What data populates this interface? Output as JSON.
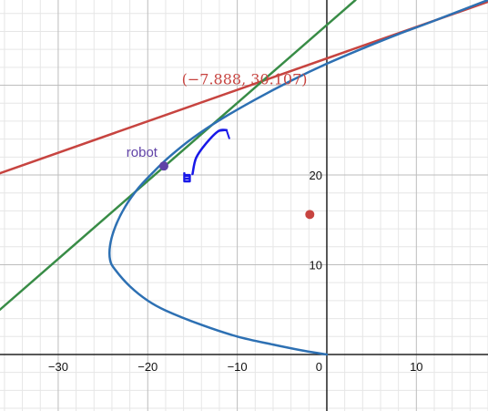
{
  "chart_data": {
    "type": "line",
    "xlim": [
      -36.5,
      18
    ],
    "ylim": [
      -6.3,
      39.5
    ],
    "grid": true,
    "x_ticks": [
      {
        "value": -30,
        "label": "−30"
      },
      {
        "value": -20,
        "label": "−20"
      },
      {
        "value": -10,
        "label": "−10"
      },
      {
        "value": 10,
        "label": "10"
      }
    ],
    "y_ticks": [
      {
        "value": 10,
        "label": "10"
      },
      {
        "value": 20,
        "label": "20"
      }
    ],
    "origin_label": "0",
    "curves": [
      {
        "id": "parabola",
        "color": "#2d70b3",
        "points": [
          [
            0,
            0
          ],
          [
            -2.5,
            0.4
          ],
          [
            -6,
            1.1
          ],
          [
            -10,
            2.0
          ],
          [
            -14,
            3.3
          ],
          [
            -18,
            4.9
          ],
          [
            -20,
            6.0
          ],
          [
            -22,
            7.6
          ],
          [
            -23.6,
            9.4
          ],
          [
            -24.2,
            10.5
          ],
          [
            -24.2,
            12.2
          ],
          [
            -23.6,
            14.3
          ],
          [
            -22.5,
            16.5
          ],
          [
            -21,
            18.6
          ],
          [
            -19.2,
            20.5
          ],
          [
            -17.5,
            22.1
          ],
          [
            -15,
            24.1
          ],
          [
            -12,
            26.1
          ],
          [
            -8,
            28.4
          ],
          [
            -4,
            30.5
          ],
          [
            0,
            32.4
          ],
          [
            4,
            34.1
          ],
          [
            8,
            35.7
          ],
          [
            11.5,
            37.0
          ],
          [
            18,
            39.5
          ]
        ]
      }
    ],
    "lines": [
      {
        "id": "red-line",
        "color": "#c74440",
        "points": [
          [
            -36.5,
            20.2
          ],
          [
            18,
            39.3
          ]
        ]
      },
      {
        "id": "green-line",
        "color": "#388c46",
        "points": [
          [
            -36.5,
            5.0
          ],
          [
            3.2,
            39.5
          ]
        ]
      }
    ],
    "points": [
      {
        "id": "robot",
        "x": -18.2,
        "y": 21.0,
        "color": "#6042a6",
        "label": "robot"
      },
      {
        "id": "red-point",
        "x": -1.9,
        "y": 15.6,
        "color": "#c74440"
      }
    ],
    "annotations": [
      {
        "id": "intersection-label",
        "text": "(−7.888, 30.107)",
        "x": -16.2,
        "y": 30.1,
        "color": "#c74440"
      }
    ],
    "ink_stroke": {
      "color": "#1818e8",
      "points": [
        [
          -15,
          20.1
        ],
        [
          -14.6,
          21.9
        ],
        [
          -13.5,
          23.5
        ],
        [
          -12.1,
          24.9
        ],
        [
          -11.2,
          25.0
        ]
      ]
    }
  }
}
